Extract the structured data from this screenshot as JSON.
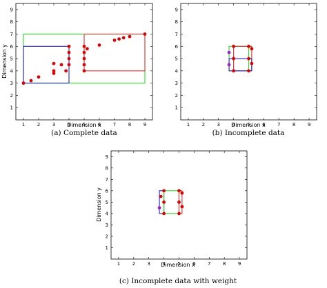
{
  "colors": {
    "points": "#e00000",
    "red_box": "#e03030",
    "green_box": "#22dd22",
    "blue_box": "#2020cc",
    "purple_points": "#a020c0"
  },
  "chart_data": [
    {
      "type": "scatter",
      "xlabel": "Dimension x",
      "ylabel": "Dimension y",
      "caption": "(a) Complete data",
      "xlim": [
        1,
        9
      ],
      "ylim": [
        0,
        9
      ],
      "xticks": [
        "1",
        "2",
        "3",
        "4",
        "5",
        "6",
        "7",
        "8",
        "9"
      ],
      "yticks": [
        "1",
        "2",
        "3",
        "4",
        "5",
        "6",
        "7",
        "8",
        "9"
      ],
      "points": [
        {
          "x": 1.0,
          "y": 3.0
        },
        {
          "x": 1.5,
          "y": 3.2
        },
        {
          "x": 2.0,
          "y": 3.5
        },
        {
          "x": 3.0,
          "y": 3.8
        },
        {
          "x": 3.0,
          "y": 4.0
        },
        {
          "x": 3.0,
          "y": 4.6
        },
        {
          "x": 3.5,
          "y": 4.5
        },
        {
          "x": 3.8,
          "y": 4.0
        },
        {
          "x": 4.0,
          "y": 4.5
        },
        {
          "x": 4.0,
          "y": 5.0
        },
        {
          "x": 4.0,
          "y": 5.5
        },
        {
          "x": 4.0,
          "y": 6.0
        },
        {
          "x": 5.0,
          "y": 4.0
        },
        {
          "x": 5.0,
          "y": 4.5
        },
        {
          "x": 5.0,
          "y": 5.0
        },
        {
          "x": 5.0,
          "y": 5.5
        },
        {
          "x": 5.0,
          "y": 6.0
        },
        {
          "x": 5.2,
          "y": 5.8
        },
        {
          "x": 6.0,
          "y": 6.1
        },
        {
          "x": 7.0,
          "y": 6.5
        },
        {
          "x": 7.3,
          "y": 6.6
        },
        {
          "x": 7.6,
          "y": 6.7
        },
        {
          "x": 8.0,
          "y": 6.8
        },
        {
          "x": 9.0,
          "y": 7.0
        }
      ],
      "boxes": [
        {
          "color": "green",
          "x": [
            1,
            9
          ],
          "y": [
            3,
            7
          ]
        },
        {
          "color": "red",
          "x": [
            5,
            9
          ],
          "y": [
            4,
            7
          ]
        },
        {
          "color": "blue",
          "x": [
            1,
            4
          ],
          "y": [
            3,
            6
          ]
        }
      ]
    },
    {
      "type": "scatter",
      "xlabel": "Dimension x",
      "ylabel": "",
      "caption": "(b) Incomplete data",
      "xlim": [
        1,
        9
      ],
      "ylim": [
        0,
        9
      ],
      "xticks": [
        "1",
        "2",
        "3",
        "4",
        "5",
        "6",
        "7",
        "8",
        "9"
      ],
      "yticks": [
        "1",
        "2",
        "3",
        "4",
        "5",
        "6",
        "7",
        "8",
        "9"
      ],
      "points": [
        {
          "x": 3.7,
          "y": 5.5,
          "c": "purple"
        },
        {
          "x": 3.7,
          "y": 4.5,
          "c": "purple"
        },
        {
          "x": 4.0,
          "y": 6.0
        },
        {
          "x": 4.0,
          "y": 5.0
        },
        {
          "x": 4.0,
          "y": 4.0
        },
        {
          "x": 5.0,
          "y": 6.0
        },
        {
          "x": 5.0,
          "y": 5.0
        },
        {
          "x": 5.0,
          "y": 4.0
        },
        {
          "x": 5.2,
          "y": 5.8
        },
        {
          "x": 5.2,
          "y": 4.6
        }
      ],
      "boxes": [
        {
          "color": "green",
          "x": [
            3.7,
            5.0
          ],
          "y": [
            4.0,
            6.0
          ]
        },
        {
          "color": "red",
          "x": [
            4.0,
            5.2
          ],
          "y": [
            4.0,
            6.0
          ]
        },
        {
          "color": "blue",
          "x": [
            3.7,
            5.2
          ],
          "y": [
            4.0,
            5.0
          ]
        }
      ]
    },
    {
      "type": "scatter",
      "xlabel": "Dimension x",
      "ylabel": "Dimension y",
      "caption": "(c) Incomplete data with weight",
      "xlim": [
        1,
        9
      ],
      "ylim": [
        0,
        9
      ],
      "xticks": [
        "1",
        "2",
        "3",
        "4",
        "5",
        "6",
        "7",
        "8",
        "9"
      ],
      "yticks": [
        "1",
        "2",
        "3",
        "4",
        "5",
        "6",
        "7",
        "8",
        "9"
      ],
      "points": [
        {
          "x": 3.7,
          "y": 4.5,
          "c": "purple"
        },
        {
          "x": 3.8,
          "y": 5.5
        },
        {
          "x": 4.0,
          "y": 6.0
        },
        {
          "x": 4.0,
          "y": 5.0
        },
        {
          "x": 4.0,
          "y": 4.0
        },
        {
          "x": 5.0,
          "y": 6.0
        },
        {
          "x": 5.0,
          "y": 5.0
        },
        {
          "x": 5.0,
          "y": 4.0
        },
        {
          "x": 5.2,
          "y": 5.8
        },
        {
          "x": 5.2,
          "y": 4.6
        }
      ],
      "boxes": [
        {
          "color": "blue",
          "x": [
            3.7,
            4.0
          ],
          "y": [
            4.0,
            6.0
          ]
        },
        {
          "color": "green",
          "x": [
            4.0,
            5.0
          ],
          "y": [
            4.0,
            6.0
          ]
        },
        {
          "color": "red",
          "x": [
            5.0,
            5.2
          ],
          "y": [
            4.0,
            6.0
          ]
        }
      ]
    }
  ]
}
